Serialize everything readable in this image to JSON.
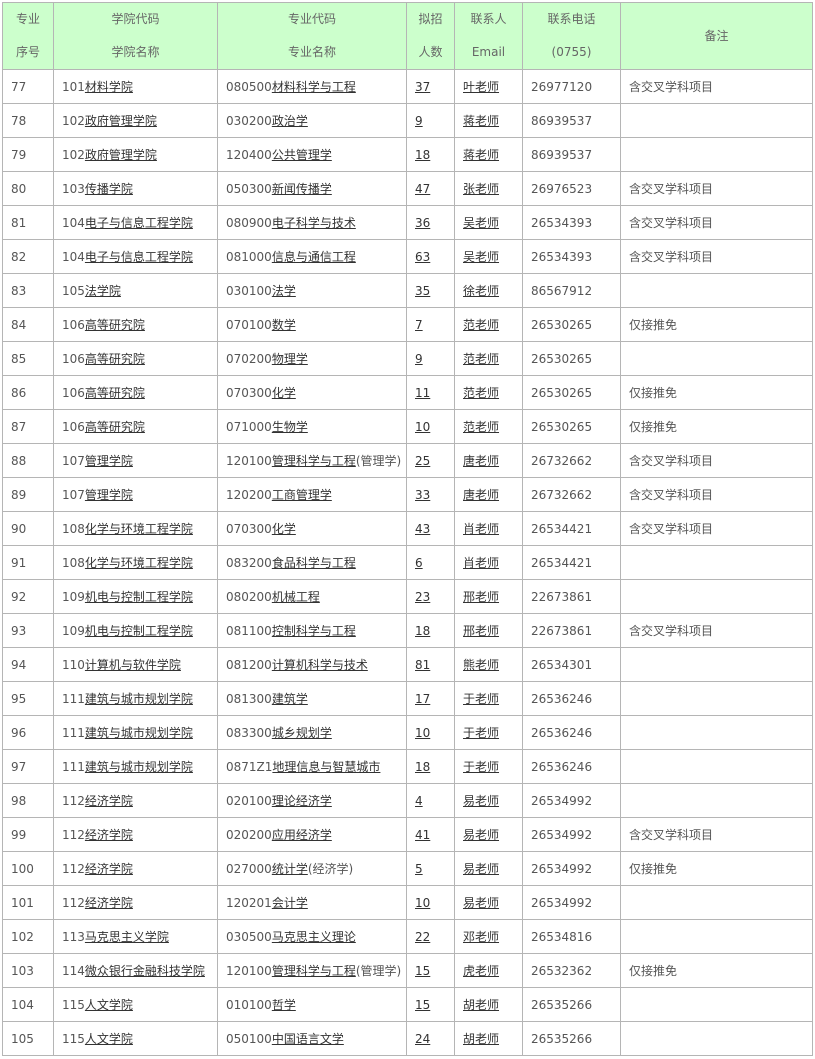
{
  "header": {
    "seq": [
      "专业",
      "序号"
    ],
    "college": [
      "学院代码",
      "学院名称"
    ],
    "major": [
      "专业代码",
      "专业名称"
    ],
    "count": [
      "拟招",
      "人数"
    ],
    "contact": [
      "联系人",
      "Email"
    ],
    "phone": [
      "联系电话",
      "(0755)"
    ],
    "note": "备注"
  },
  "colors": {
    "header_bg": "#ccffcc",
    "border": "#b5b5b5"
  },
  "rows": [
    [
      "77",
      "101",
      "材料学院",
      "080500",
      "材料科学与工程",
      "",
      "37",
      "叶老师",
      "26977120",
      "含交叉学科项目"
    ],
    [
      "78",
      "102",
      "政府管理学院",
      "030200",
      "政治学",
      "",
      "9",
      "蒋老师",
      "86939537",
      ""
    ],
    [
      "79",
      "102",
      "政府管理学院",
      "120400",
      "公共管理学",
      "",
      "18",
      "蒋老师",
      "86939537",
      ""
    ],
    [
      "80",
      "103",
      "传播学院",
      "050300",
      "新闻传播学",
      "",
      "47",
      "张老师",
      "26976523",
      "含交叉学科项目"
    ],
    [
      "81",
      "104",
      "电子与信息工程学院",
      "080900",
      "电子科学与技术",
      "",
      "36",
      "吴老师",
      "26534393",
      "含交叉学科项目"
    ],
    [
      "82",
      "104",
      "电子与信息工程学院",
      "081000",
      "信息与通信工程",
      "",
      "63",
      "吴老师",
      "26534393",
      "含交叉学科项目"
    ],
    [
      "83",
      "105",
      "法学院",
      "030100",
      "法学",
      "",
      "35",
      "徐老师",
      "86567912",
      ""
    ],
    [
      "84",
      "106",
      "高等研究院",
      "070100",
      "数学",
      "",
      "7",
      "范老师",
      "26530265",
      "仅接推免"
    ],
    [
      "85",
      "106",
      "高等研究院",
      "070200",
      "物理学",
      "",
      "9",
      "范老师",
      "26530265",
      ""
    ],
    [
      "86",
      "106",
      "高等研究院",
      "070300",
      "化学",
      "",
      "11",
      "范老师",
      "26530265",
      "仅接推免"
    ],
    [
      "87",
      "106",
      "高等研究院",
      "071000",
      "生物学",
      "",
      "10",
      "范老师",
      "26530265",
      "仅接推免"
    ],
    [
      "88",
      "107",
      "管理学院",
      "120100",
      "管理科学与工程",
      "(管理学)",
      "25",
      "唐老师",
      "26732662",
      "含交叉学科项目"
    ],
    [
      "89",
      "107",
      "管理学院",
      "120200",
      "工商管理学",
      "",
      "33",
      "唐老师",
      "26732662",
      "含交叉学科项目"
    ],
    [
      "90",
      "108",
      "化学与环境工程学院",
      "070300",
      "化学",
      "",
      "43",
      "肖老师",
      "26534421",
      "含交叉学科项目"
    ],
    [
      "91",
      "108",
      "化学与环境工程学院",
      "083200",
      "食品科学与工程",
      "",
      "6",
      "肖老师",
      "26534421",
      ""
    ],
    [
      "92",
      "109",
      "机电与控制工程学院",
      "080200",
      "机械工程",
      "",
      "23",
      "邢老师",
      "22673861",
      ""
    ],
    [
      "93",
      "109",
      "机电与控制工程学院",
      "081100",
      "控制科学与工程",
      "",
      "18",
      "邢老师",
      "22673861",
      "含交叉学科项目"
    ],
    [
      "94",
      "110",
      "计算机与软件学院",
      "081200",
      "计算机科学与技术",
      "",
      "81",
      "熊老师",
      "26534301",
      ""
    ],
    [
      "95",
      "111",
      "建筑与城市规划学院",
      "081300",
      "建筑学",
      "",
      "17",
      "于老师",
      "26536246",
      ""
    ],
    [
      "96",
      "111",
      "建筑与城市规划学院",
      "083300",
      "城乡规划学",
      "",
      "10",
      "于老师",
      "26536246",
      ""
    ],
    [
      "97",
      "111",
      "建筑与城市规划学院",
      "0871Z1",
      "地理信息与智慧城市",
      "",
      "18",
      "于老师",
      "26536246",
      ""
    ],
    [
      "98",
      "112",
      "经济学院",
      "020100",
      "理论经济学",
      "",
      "4",
      "易老师",
      "26534992",
      ""
    ],
    [
      "99",
      "112",
      "经济学院",
      "020200",
      "应用经济学",
      "",
      "41",
      "易老师",
      "26534992",
      "含交叉学科项目"
    ],
    [
      "100",
      "112",
      "经济学院",
      "027000",
      "统计学",
      "(经济学)",
      "5",
      "易老师",
      "26534992",
      "仅接推免"
    ],
    [
      "101",
      "112",
      "经济学院",
      "120201",
      "会计学",
      "",
      "10",
      "易老师",
      "26534992",
      ""
    ],
    [
      "102",
      "113",
      "马克思主义学院",
      "030500",
      "马克思主义理论",
      "",
      "22",
      "邓老师",
      "26534816",
      ""
    ],
    [
      "103",
      "114",
      "微众银行金融科技学院",
      "120100",
      "管理科学与工程",
      "(管理学)",
      "15",
      "虎老师",
      "26532362",
      "仅接推免"
    ],
    [
      "104",
      "115",
      "人文学院",
      "010100",
      "哲学",
      "",
      "15",
      "胡老师",
      "26535266",
      ""
    ],
    [
      "105",
      "115",
      "人文学院",
      "050100",
      "中国语言文学",
      "",
      "24",
      "胡老师",
      "26535266",
      ""
    ]
  ]
}
